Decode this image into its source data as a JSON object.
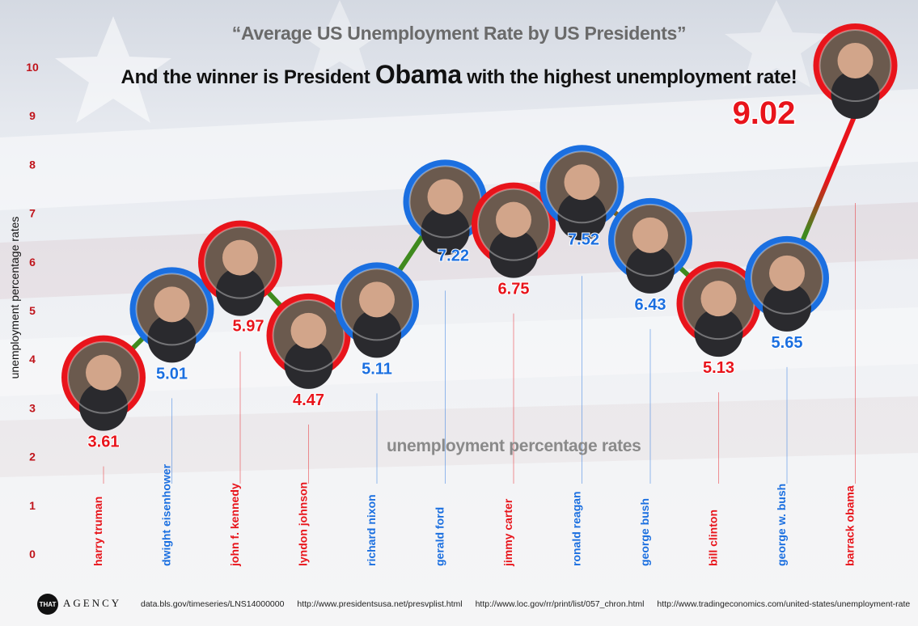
{
  "title": "“Average US Unemployment Rate by US Presidents”",
  "headline": {
    "before": "And the winner is President",
    "emphasis": "Obama",
    "after": "with the highest unemployment rate!"
  },
  "footer": {
    "logo_that": "THAT",
    "logo_agency": "AGENCY",
    "sources": [
      "data.bls.gov/timeseries/LNS14000000",
      "http://www.presidentsusa.net/presvplist.html",
      "http://www.loc.gov/rr/print/list/057_chron.html",
      "http://www.tradingeconomics.com/united-states/unemployment-rate"
    ]
  },
  "colors": {
    "red": "#e8141b",
    "blue": "#1b6fe0",
    "line_low": "#3f8a1e",
    "line_high": "#e8141b"
  },
  "chart_data": {
    "type": "line",
    "ylabel": "unemployment percentage rates",
    "watermark": "unemployment percentage rates",
    "ylim": [
      0,
      10
    ],
    "yticks": [
      0,
      1,
      2,
      3,
      4,
      5,
      6,
      7,
      8,
      9,
      10
    ],
    "categories": [
      "harry truman",
      "dwight eisenhower",
      "john f. kennedy",
      "lyndon johnson",
      "richard nixon",
      "gerald ford",
      "jimmy carter",
      "ronald reagan",
      "george bush",
      "bill clinton",
      "george w. bush",
      "barrack obama"
    ],
    "values": [
      3.61,
      5.01,
      5.97,
      4.47,
      5.11,
      7.22,
      6.75,
      7.52,
      6.43,
      5.13,
      5.65,
      9.02
    ],
    "value_labels": [
      "3.61",
      "5.01",
      "5.97",
      "4.47",
      "5.11",
      "7.22",
      "6.75",
      "7.52",
      "6.43",
      "5.13",
      "5.65",
      "9.02"
    ],
    "party_colors": [
      "red",
      "blue",
      "red",
      "red",
      "blue",
      "blue",
      "red",
      "blue",
      "blue",
      "red",
      "blue",
      "red"
    ]
  }
}
